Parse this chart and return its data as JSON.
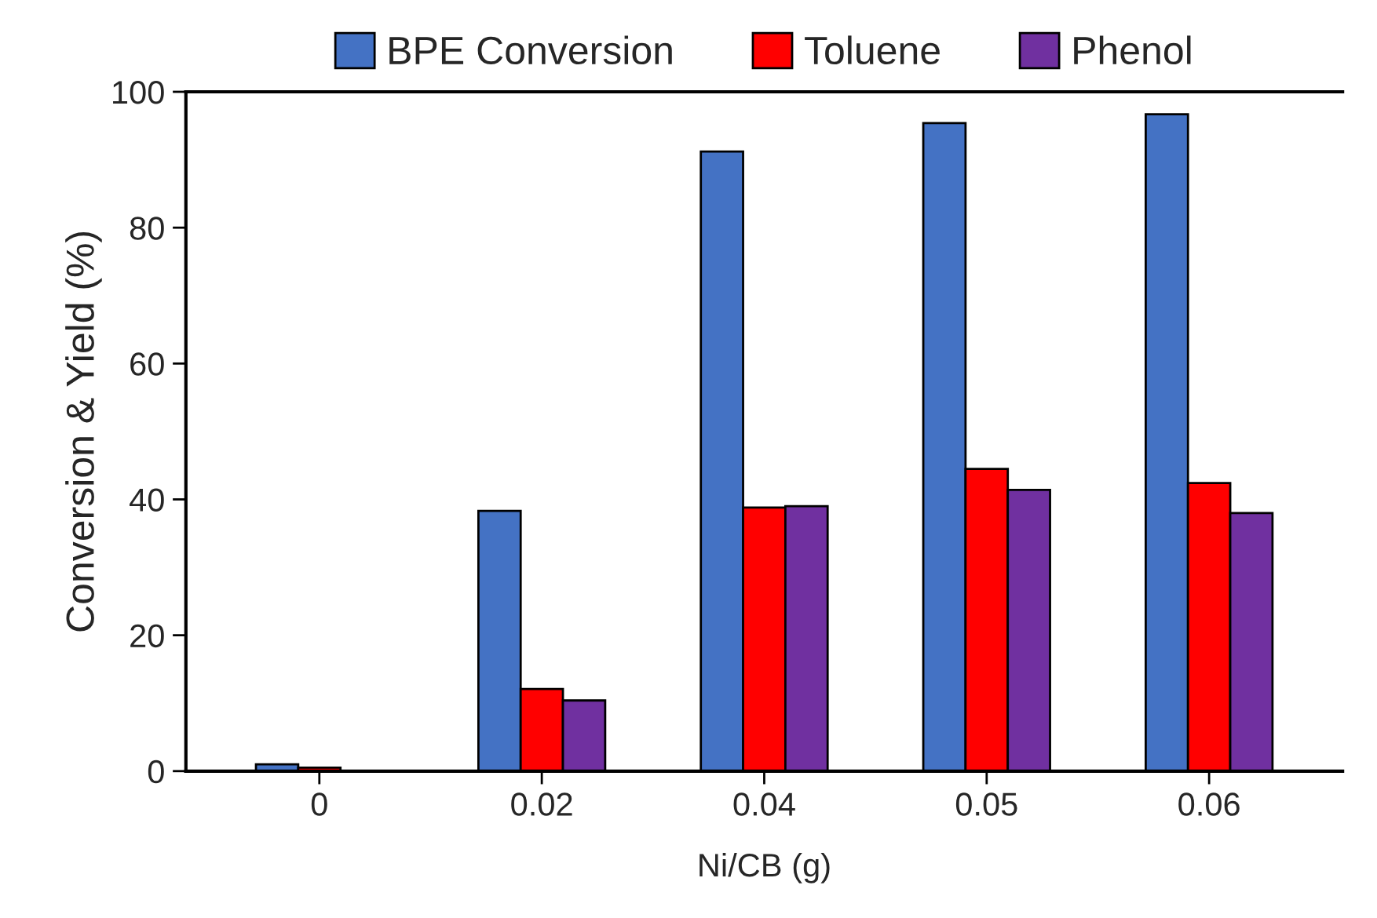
{
  "chart_data": {
    "type": "bar",
    "xlabel": "Ni/CB (g)",
    "ylabel": "Conversion & Yield (%)",
    "categories": [
      "0",
      "0.02",
      "0.04",
      "0.05",
      "0.06"
    ],
    "series": [
      {
        "name": "BPE Conversion",
        "color": "#4472c4",
        "values": [
          1.0,
          38.3,
          91.2,
          95.4,
          96.7
        ]
      },
      {
        "name": "Toluene",
        "color": "#ff0000",
        "values": [
          0.5,
          12.1,
          38.8,
          44.5,
          42.4
        ]
      },
      {
        "name": "Phenol",
        "color": "#7030a0",
        "values": [
          null,
          10.4,
          39.0,
          41.4,
          38.0
        ]
      }
    ],
    "ylim": [
      0,
      100
    ],
    "yticks": [
      0,
      20,
      40,
      60,
      80,
      100
    ],
    "grid": false,
    "legend": "top"
  }
}
